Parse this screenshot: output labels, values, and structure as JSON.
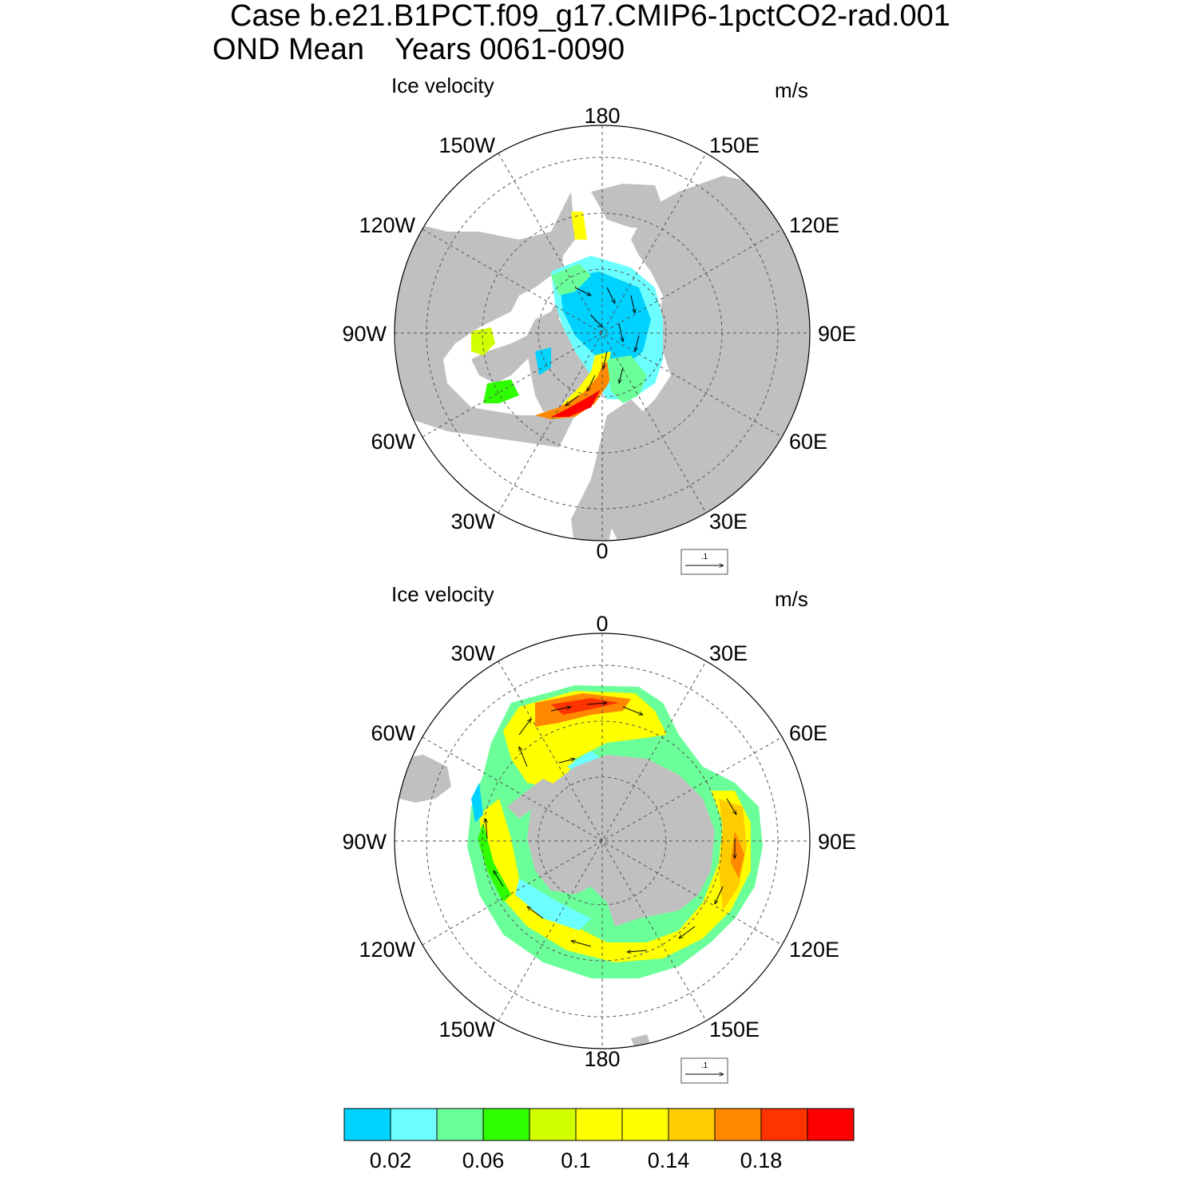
{
  "title": {
    "line1": "Case b.e21.B1PCT.f09_g17.CMIP6-1pctCO2-rad.001",
    "line2_left": "OND Mean",
    "line2_right": "Years 0061-0090"
  },
  "panels": [
    {
      "hemisphere": "north",
      "left_label": "Ice velocity",
      "right_label": "m/s",
      "lon_labels": {
        "top": "180",
        "bottom": "0",
        "left": "90W",
        "right": "90E",
        "upper_left_1": "150W",
        "upper_left_2": "120W",
        "upper_right_1": "150E",
        "upper_right_2": "120E",
        "lower_left_1": "60W",
        "lower_left_2": "30W",
        "lower_right_1": "60E",
        "lower_right_2": "30E"
      },
      "ref_vector_label": ".1"
    },
    {
      "hemisphere": "south",
      "left_label": "Ice velocity",
      "right_label": "m/s",
      "lon_labels": {
        "top": "0",
        "bottom": "180",
        "left": "90W",
        "right": "90E",
        "upper_left_1": "30W",
        "upper_left_2": "60W",
        "upper_right_1": "30E",
        "upper_right_2": "60E",
        "lower_left_1": "120W",
        "lower_left_2": "150W",
        "lower_right_1": "120E",
        "lower_right_2": "150E"
      },
      "ref_vector_label": ".1"
    }
  ],
  "colorbar": {
    "colors": [
      "#00d2ff",
      "#6bffff",
      "#6bff9a",
      "#2eff00",
      "#d2ff00",
      "#ffff00",
      "#ffff00",
      "#ffcc00",
      "#ff8800",
      "#ff3300",
      "#ff0000"
    ],
    "tick_labels": [
      "0.02",
      "0.06",
      "0.1",
      "0.14",
      "0.18"
    ]
  },
  "land_color": "#c0c0c0"
}
